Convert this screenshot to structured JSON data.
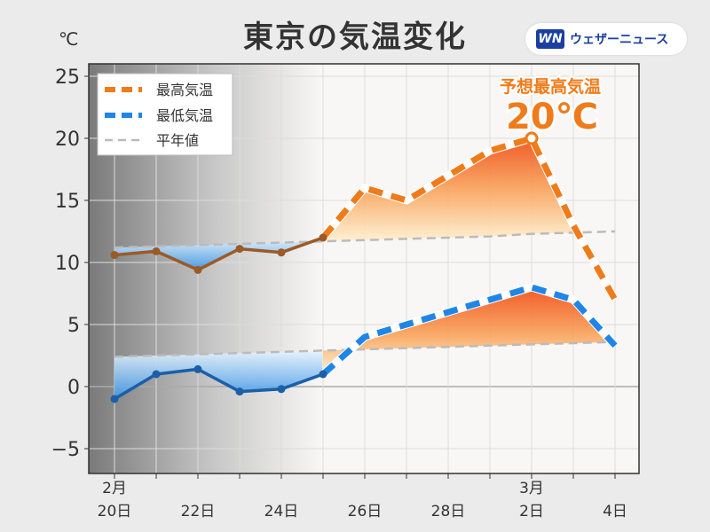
{
  "header": {
    "title": "東京の気温変化",
    "unit": "℃",
    "brand_logo": "WN",
    "brand_name": "ウェザーニュース"
  },
  "annotation": {
    "label": "予想最高気温",
    "value": "20℃",
    "color": "#f07b1a"
  },
  "chart_data": {
    "type": "line",
    "title": "東京の気温変化",
    "ylabel": "℃",
    "ylim": [
      -7,
      26
    ],
    "yticks": [
      -5,
      0,
      5,
      10,
      15,
      20,
      25
    ],
    "x": [
      "2/20",
      "2/21",
      "2/22",
      "2/23",
      "2/24",
      "2/25",
      "2/26",
      "2/27",
      "2/28",
      "3/1",
      "3/2",
      "3/3",
      "3/4"
    ],
    "xticks": [
      {
        "x": "2/20",
        "label": "20日",
        "month": "2月"
      },
      {
        "x": "2/22",
        "label": "22日",
        "month": ""
      },
      {
        "x": "2/24",
        "label": "24日",
        "month": ""
      },
      {
        "x": "2/26",
        "label": "26日",
        "month": ""
      },
      {
        "x": "2/28",
        "label": "28日",
        "month": ""
      },
      {
        "x": "3/2",
        "label": "2日",
        "month": "3月"
      },
      {
        "x": "3/4",
        "label": "4日",
        "month": ""
      }
    ],
    "observed_until": "2/25",
    "legend_position": "top-left",
    "grid": true,
    "series": [
      {
        "name": "最高気温",
        "color": "#f07b1a",
        "values": [
          10.6,
          10.9,
          9.4,
          11.1,
          10.8,
          12.0,
          16.0,
          15.0,
          17.0,
          19.0,
          20.0,
          13.0,
          7.0
        ]
      },
      {
        "name": "最低気温",
        "color": "#1e86e8",
        "values": [
          -1.0,
          1.0,
          1.4,
          -0.4,
          -0.2,
          1.0,
          4.0,
          5.0,
          6.0,
          7.0,
          8.0,
          7.0,
          3.3
        ]
      },
      {
        "name": "平年値",
        "color": "#bbbbbb",
        "values": [
          11.2,
          11.3,
          11.4,
          11.5,
          11.6,
          11.7,
          11.8,
          11.9,
          12.0,
          12.1,
          12.3,
          12.4,
          12.5
        ]
      },
      {
        "name": "",
        "color": "#bbbbbb",
        "values": [
          2.4,
          2.5,
          2.6,
          2.7,
          2.8,
          2.9,
          3.0,
          3.1,
          3.2,
          3.3,
          3.4,
          3.5,
          3.6
        ]
      }
    ]
  }
}
